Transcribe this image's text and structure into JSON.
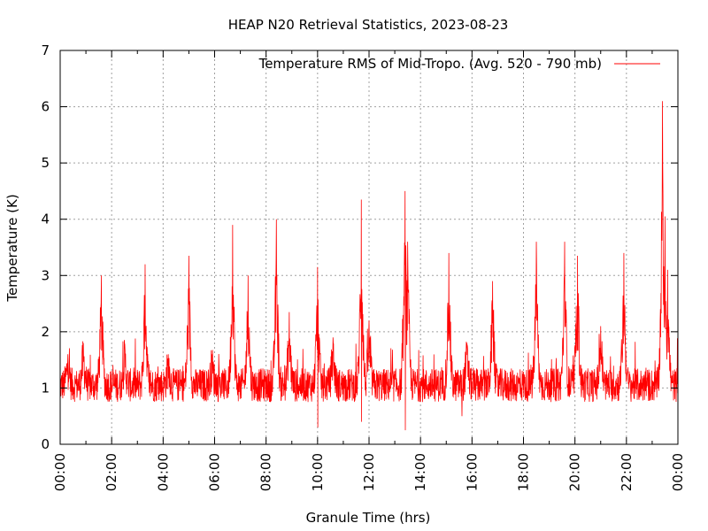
{
  "chart_data": {
    "type": "line",
    "title": "HEAP N20 Retrieval Statistics, 2023-08-23",
    "xlabel": "Granule Time (hrs)",
    "ylabel": "Temperature (K)",
    "xlim": [
      0,
      24
    ],
    "ylim": [
      0,
      7
    ],
    "grid": true,
    "legend_position": "top-right",
    "x_ticks": [
      {
        "value": 0,
        "label": "00:00"
      },
      {
        "value": 2,
        "label": "02:00"
      },
      {
        "value": 4,
        "label": "04:00"
      },
      {
        "value": 6,
        "label": "06:00"
      },
      {
        "value": 8,
        "label": "08:00"
      },
      {
        "value": 10,
        "label": "10:00"
      },
      {
        "value": 12,
        "label": "12:00"
      },
      {
        "value": 14,
        "label": "14:00"
      },
      {
        "value": 16,
        "label": "16:00"
      },
      {
        "value": 18,
        "label": "18:00"
      },
      {
        "value": 20,
        "label": "20:00"
      },
      {
        "value": 22,
        "label": "22:00"
      },
      {
        "value": 24,
        "label": "00:00"
      }
    ],
    "y_ticks": [
      {
        "value": 0,
        "label": "0"
      },
      {
        "value": 1,
        "label": "1"
      },
      {
        "value": 2,
        "label": "2"
      },
      {
        "value": 3,
        "label": "3"
      },
      {
        "value": 4,
        "label": "4"
      },
      {
        "value": 5,
        "label": "5"
      },
      {
        "value": 6,
        "label": "6"
      },
      {
        "value": 7,
        "label": "7"
      }
    ],
    "series": [
      {
        "name": "Temperature RMS of Mid-Tropo. (Avg. 520 - 790 mb)",
        "color": "#ff0000",
        "baseline": 1.05,
        "noise": 0.3,
        "peaks": [
          {
            "x": 0.3,
            "y": 1.6
          },
          {
            "x": 0.9,
            "y": 1.8
          },
          {
            "x": 1.6,
            "y": 3.0
          },
          {
            "x": 2.5,
            "y": 1.8
          },
          {
            "x": 3.3,
            "y": 3.2
          },
          {
            "x": 4.2,
            "y": 1.6
          },
          {
            "x": 5.0,
            "y": 3.35
          },
          {
            "x": 5.9,
            "y": 1.6
          },
          {
            "x": 6.7,
            "y": 3.9
          },
          {
            "x": 7.3,
            "y": 3.0
          },
          {
            "x": 8.4,
            "y": 4.0
          },
          {
            "x": 8.9,
            "y": 2.35
          },
          {
            "x": 10.0,
            "y": 3.15
          },
          {
            "x": 10.6,
            "y": 1.9
          },
          {
            "x": 11.7,
            "y": 4.35
          },
          {
            "x": 12.0,
            "y": 2.2
          },
          {
            "x": 13.4,
            "y": 4.5
          },
          {
            "x": 13.5,
            "y": 3.6
          },
          {
            "x": 15.1,
            "y": 3.4
          },
          {
            "x": 15.8,
            "y": 1.8
          },
          {
            "x": 16.8,
            "y": 2.9
          },
          {
            "x": 18.5,
            "y": 3.6
          },
          {
            "x": 19.6,
            "y": 3.6
          },
          {
            "x": 20.1,
            "y": 3.35
          },
          {
            "x": 21.0,
            "y": 2.1
          },
          {
            "x": 21.9,
            "y": 3.4
          },
          {
            "x": 23.4,
            "y": 6.1
          },
          {
            "x": 23.5,
            "y": 4.05
          },
          {
            "x": 23.6,
            "y": 3.1
          }
        ],
        "dips": [
          {
            "x": 10.0,
            "y": 0.3
          },
          {
            "x": 13.4,
            "y": 0.25
          },
          {
            "x": 11.7,
            "y": 0.4
          },
          {
            "x": 15.6,
            "y": 0.5
          }
        ]
      }
    ]
  }
}
